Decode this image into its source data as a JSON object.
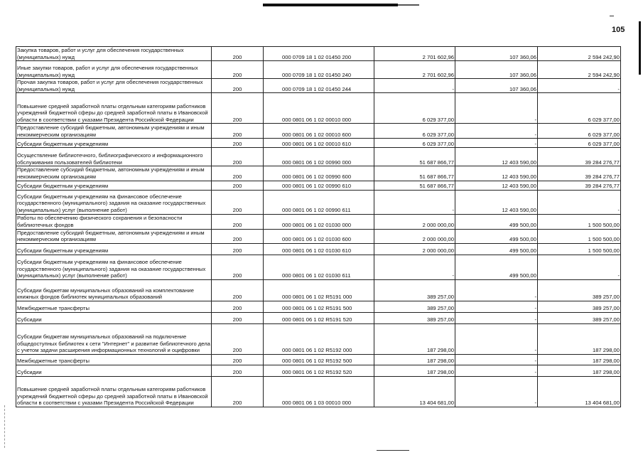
{
  "page_number": "105",
  "rows": [
    {
      "name": "Закупка товаров, работ и услуг для обеспечения государственных (муниципальных) нужд",
      "code": "200",
      "kbk": "000 0709 18 1 02 01450 200",
      "approved": "2 701 602,96",
      "executed": "107 360,06",
      "unexecuted": "2 594 242,90"
    },
    {
      "name": "Иные закупки товаров, работ и услуг для обеспечения государственных (муниципальных) нужд",
      "code": "200",
      "kbk": "000 0709 18 1 02 01450 240",
      "approved": "2 701 602,96",
      "executed": "107 360,06",
      "unexecuted": "2 594 242,90"
    },
    {
      "name": "Прочая закупка товаров, работ и услуг для обеспечения государственных (муниципальных) нужд",
      "code": "200",
      "kbk": "000 0709 18 1 02 01450 244",
      "approved": "-",
      "executed": "107 360,06",
      "unexecuted": "-"
    },
    {
      "name": "Повышение средней заработной платы отдельным категориям работников учреждений бюджетной сферы до средней заработной платы в Ивановской области в соответствии с указами Президента Российской Федерации",
      "code": "200",
      "kbk": "000 0801 06 1 02 00010 000",
      "approved": "6 029 377,00",
      "executed": "-",
      "unexecuted": "6 029 377,00"
    },
    {
      "name": "Предоставление субсидий бюджетным, автономным учреждениям и иным некоммерческим организациям",
      "code": "200",
      "kbk": "000 0801 06 1 02 00010 600",
      "approved": "6 029 377,00",
      "executed": "-",
      "unexecuted": "6 029 377,00"
    },
    {
      "name": "Субсидии бюджетным учреждениям",
      "code": "200",
      "kbk": "000 0801 06 1 02 00010 610",
      "approved": "6 029 377,00",
      "executed": "-",
      "unexecuted": "6 029 377,00"
    },
    {
      "name": "Осуществление библиотечного, библиографического и информационного обслуживания пользователей библиотеки",
      "code": "200",
      "kbk": "000 0801 06 1 02 00990 000",
      "approved": "51 687 866,77",
      "executed": "12 403 590,00",
      "unexecuted": "39 284 276,77"
    },
    {
      "name": "Предоставление субсидий бюджетным, автономным учреждениям и иным некоммерческим организациям",
      "code": "200",
      "kbk": "000 0801 06 1 02 00990 600",
      "approved": "51 687 866,77",
      "executed": "12 403 590,00",
      "unexecuted": "39 284 276,77"
    },
    {
      "name": "Субсидии бюджетным учреждениям",
      "code": "200",
      "kbk": "000 0801 06 1 02 00990 610",
      "approved": "51 687 866,77",
      "executed": "12 403 590,00",
      "unexecuted": "39 284 276,77"
    },
    {
      "name": "Субсидии бюджетным учреждениям на финансовое обеспечение государственного (муниципального) задания на оказание государственных (муниципальных) услуг (выполнение работ)",
      "code": "200",
      "kbk": "000 0801 06 1 02 00990 611",
      "approved": "-",
      "executed": "12 403 590,00",
      "unexecuted": "-"
    },
    {
      "name": "Работы по обеспечению физического сохранения и безопасности библиотечных фондов",
      "code": "200",
      "kbk": "000 0801 06 1 02 01030 000",
      "approved": "2 000 000,00",
      "executed": "499 500,00",
      "unexecuted": "1 500 500,00"
    },
    {
      "name": "Предоставление субсидий бюджетным, автономным учреждениям и иным некоммерческим организациям",
      "code": "200",
      "kbk": "000 0801 06 1 02 01030 600",
      "approved": "2 000 000,00",
      "executed": "499 500,00",
      "unexecuted": "1 500 500,00"
    },
    {
      "name": "Субсидии бюджетным учреждениям",
      "code": "200",
      "kbk": "000 0801 06 1 02 01030 610",
      "approved": "2 000 000,00",
      "executed": "499 500,00",
      "unexecuted": "1 500 500,00"
    },
    {
      "name": "Субсидии бюджетным учреждениям на финансовое обеспечение государственного (муниципального) задания на оказание государственных (муниципальных) услуг (выполнение работ)",
      "code": "200",
      "kbk": "000 0801 06 1 02 01030 611",
      "approved": "-",
      "executed": "499 500,00",
      "unexecuted": "-"
    },
    {
      "name": "Субсидии бюджетам муниципальных образований на комплектование книжных фондов библиотек муниципальных образований",
      "code": "200",
      "kbk": "000 0801 06 1 02 R5191 000",
      "approved": "389 257,00",
      "executed": "-",
      "unexecuted": "389 257,00"
    },
    {
      "name": "Межбюджетные трансферты",
      "code": "200",
      "kbk": "000 0801 06 1 02 R5191 500",
      "approved": "389 257,00",
      "executed": "-",
      "unexecuted": "389 257,00"
    },
    {
      "name": "Субсидии",
      "code": "200",
      "kbk": "000 0801 06 1 02 R5191 520",
      "approved": "389 257,00",
      "executed": "-",
      "unexecuted": "389 257,00"
    },
    {
      "name": "Субсидии бюджетам муниципальных образований на подключение общедоступных библиотек к сети \"Интернет\" и развитие библиотечного дела с учетом задачи расширения информационных технологий и оцифровки",
      "code": "200",
      "kbk": "000 0801 06 1 02 R5192 000",
      "approved": "187 298,00",
      "executed": "-",
      "unexecuted": "187 298,00"
    },
    {
      "name": "Межбюджетные трансферты",
      "code": "200",
      "kbk": "000 0801 06 1 02 R5192 500",
      "approved": "187 298,00",
      "executed": "-",
      "unexecuted": "187 298,00"
    },
    {
      "name": "Субсидии",
      "code": "200",
      "kbk": "000 0801 06 1 02 R5192 520",
      "approved": "187 298,00",
      "executed": "-",
      "unexecuted": "187 298,00"
    },
    {
      "name": "Повышение средней заработной платы отдельным категориям работников учреждений бюджетной сферы до средней заработной платы в Ивановской области в соответствии с указами Президента Российской Федерации",
      "code": "200",
      "kbk": "000 0801 06 1 03 00010 000",
      "approved": "13 404 681,00",
      "executed": "-",
      "unexecuted": "13 404 681,00"
    }
  ]
}
